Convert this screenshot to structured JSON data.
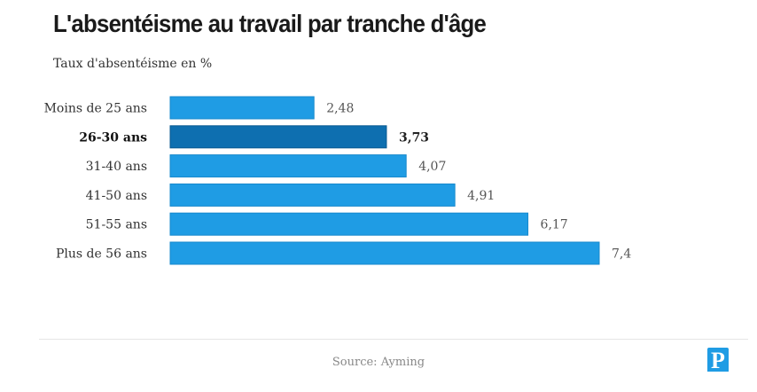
{
  "chart_data": {
    "type": "bar",
    "orientation": "horizontal",
    "title": "L'absentéisme au travail par tranche d'âge",
    "subtitle": "Taux d'absentéisme en %",
    "categories": [
      "Moins de 25 ans",
      "26-30 ans",
      "31-40 ans",
      "41-50 ans",
      "51-55 ans",
      "Plus de 56 ans"
    ],
    "values": [
      2.48,
      3.73,
      4.07,
      4.91,
      6.17,
      7.4
    ],
    "value_labels": [
      "2,48",
      "3,73",
      "4,07",
      "4,91",
      "6,17",
      "7,4"
    ],
    "highlight_index": 1,
    "xlim": [
      0,
      7.4
    ],
    "grid": false,
    "legend": "none",
    "colors": {
      "bar": "#1f9ce4",
      "highlight": "#0e6fb0",
      "label": "#555555",
      "highlight_label": "#222222"
    }
  },
  "footer": {
    "source": "Source: Ayming"
  },
  "logo": {
    "text": "P",
    "color": "#1f9ce4"
  }
}
